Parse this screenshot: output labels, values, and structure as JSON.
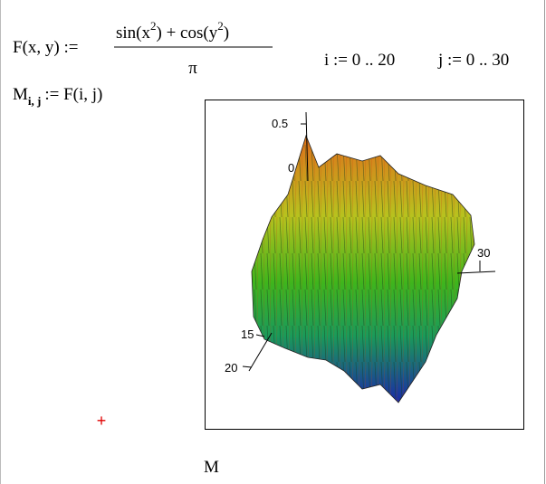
{
  "worksheet": {
    "function_def": {
      "lhs": "F(x, y) :=",
      "numerator": [
        "sin(x",
        "2",
        ") + cos(y",
        "2",
        ")"
      ],
      "denominator": "π"
    },
    "ranges": [
      "i := 0 .. 20",
      "j := 0 .. 30"
    ],
    "matrix_def": {
      "name": "M",
      "subscript": "i, j",
      "rhs": ":= F(i, j)"
    },
    "plot": {
      "axis_labels": [
        "0.5",
        "0",
        "30",
        "15",
        "20"
      ],
      "caption": "M"
    },
    "cursor": "+"
  }
}
